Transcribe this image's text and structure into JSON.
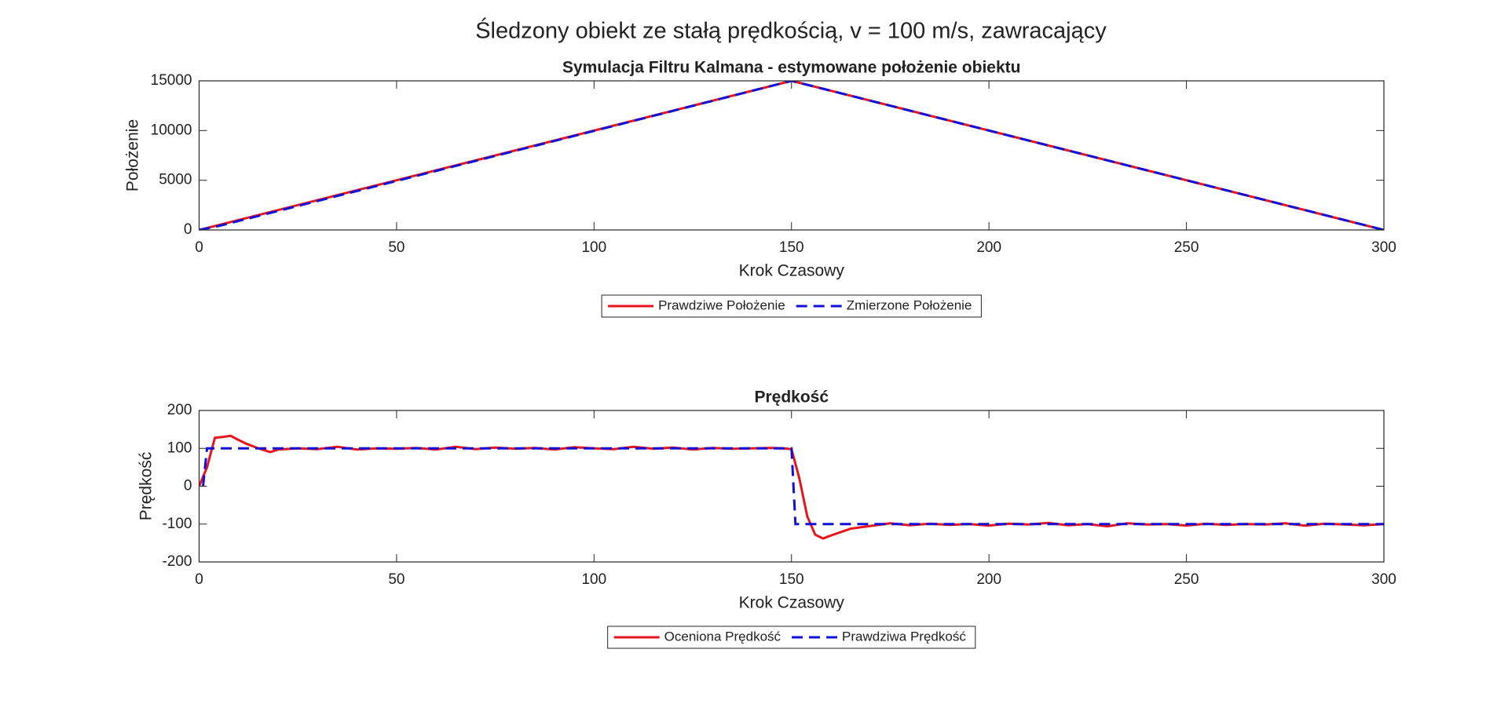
{
  "title": "Śledzony obiekt ze stałą prędkością, v = 100 m/s, zawracający",
  "chart_data": [
    {
      "type": "line",
      "title": "Symulacja Filtru Kalmana - estymowane położenie obiektu",
      "xlabel": "Krok Czasowy",
      "ylabel": "Położenie",
      "xlim": [
        0,
        300
      ],
      "ylim": [
        0,
        15000
      ],
      "xticks": [
        0,
        50,
        100,
        150,
        200,
        250,
        300
      ],
      "yticks": [
        0,
        5000,
        10000,
        15000
      ],
      "legend": "south-outside",
      "series": [
        {
          "name": "Prawdziwe Położenie",
          "color": "#e8141c",
          "style": "solid",
          "x": [
            0,
            150,
            300
          ],
          "values": [
            0,
            15000,
            0
          ]
        },
        {
          "name": "Zmierzone Położenie",
          "color": "#1010d8",
          "style": "dashed",
          "x": [
            0,
            5,
            150,
            152,
            300
          ],
          "values": [
            0,
            400,
            15000,
            14800,
            0
          ]
        }
      ]
    },
    {
      "type": "line",
      "title": "Prędkość",
      "xlabel": "Krok Czasowy",
      "ylabel": "Prędkość",
      "xlim": [
        0,
        300
      ],
      "ylim": [
        -200,
        200
      ],
      "xticks": [
        0,
        50,
        100,
        150,
        200,
        250,
        300
      ],
      "yticks": [
        -200,
        -100,
        0,
        100,
        200
      ],
      "legend": "south-outside",
      "series": [
        {
          "name": "Oceniona Prędkość",
          "color": "#e8141c",
          "style": "solid",
          "x": [
            0,
            2,
            4,
            6,
            8,
            10,
            12,
            15,
            18,
            20,
            25,
            30,
            35,
            40,
            45,
            50,
            55,
            60,
            65,
            70,
            75,
            80,
            85,
            90,
            95,
            100,
            105,
            110,
            115,
            120,
            125,
            130,
            135,
            140,
            145,
            148,
            150,
            152,
            154,
            156,
            158,
            160,
            165,
            170,
            175,
            180,
            185,
            190,
            195,
            200,
            205,
            210,
            215,
            220,
            225,
            230,
            235,
            240,
            245,
            250,
            255,
            260,
            265,
            270,
            275,
            280,
            285,
            290,
            295,
            300
          ],
          "values": [
            0,
            50,
            128,
            130,
            133,
            122,
            112,
            100,
            90,
            97,
            100,
            98,
            104,
            97,
            100,
            99,
            101,
            97,
            104,
            98,
            102,
            99,
            101,
            97,
            103,
            100,
            98,
            104,
            99,
            102,
            97,
            101,
            99,
            100,
            101,
            100,
            98,
            20,
            -80,
            -128,
            -138,
            -130,
            -112,
            -105,
            -98,
            -103,
            -99,
            -102,
            -100,
            -104,
            -99,
            -101,
            -97,
            -103,
            -100,
            -106,
            -98,
            -101,
            -100,
            -104,
            -99,
            -102,
            -100,
            -101,
            -98,
            -104,
            -99,
            -101,
            -103,
            -100
          ]
        },
        {
          "name": "Prawdziwa Prędkość",
          "color": "#1010d8",
          "style": "dashed",
          "x": [
            1,
            2,
            150,
            151,
            300
          ],
          "values": [
            0,
            100,
            100,
            -100,
            -100
          ]
        }
      ]
    }
  ]
}
